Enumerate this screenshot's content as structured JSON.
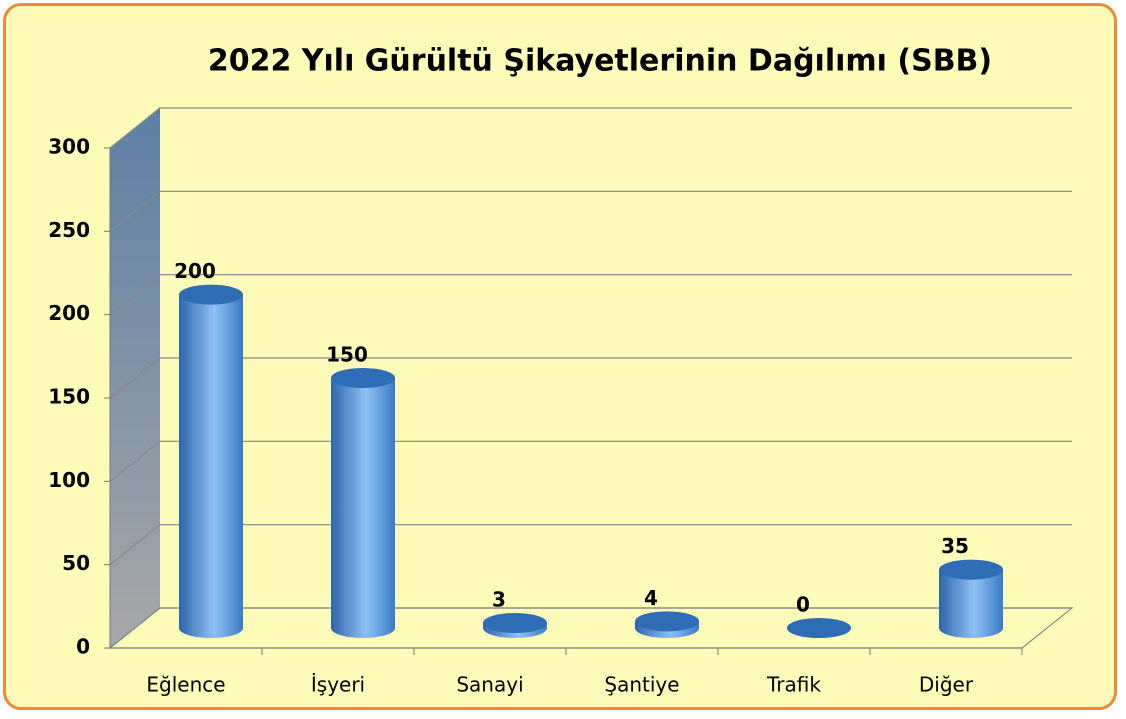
{
  "chart_data": {
    "type": "bar3d",
    "title": "2022 Yılı Gürültü Şikayetlerinin Dağılımı (SBB)",
    "categories": [
      "Eğlence",
      "İşyeri",
      "Sanayi",
      "Şantiye",
      "Trafik",
      "Diğer"
    ],
    "values": [
      200,
      150,
      3,
      4,
      0,
      35
    ],
    "color": "#4a90d9",
    "ylim": [
      0,
      300
    ],
    "yticks": [
      0,
      50,
      100,
      150,
      200,
      250,
      300
    ],
    "grid": true
  }
}
